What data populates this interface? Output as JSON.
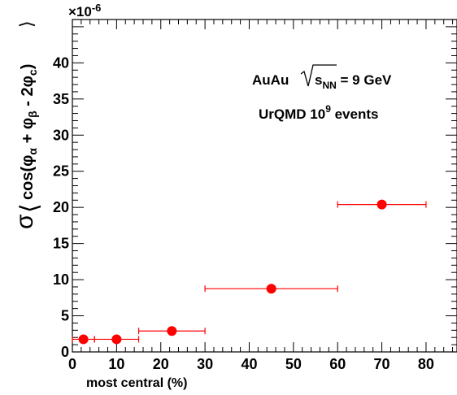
{
  "chart_data": {
    "type": "scatter",
    "title": "",
    "xlabel": "most central (%)",
    "ylabel": {
      "sigma": "σ",
      "core": "cos(φ",
      "sub_alpha": "α",
      "plus": " + φ",
      "sub_beta": "β",
      "minus": " - 2φ",
      "sub_c": "c",
      "close": ")"
    },
    "xlim": [
      0,
      87
    ],
    "ylim": [
      0,
      46
    ],
    "y_multiplier": "×10",
    "y_multiplier_exp": "-6",
    "x_ticks": [
      "0",
      "10",
      "20",
      "30",
      "40",
      "50",
      "60",
      "70",
      "80"
    ],
    "y_ticks": [
      "0",
      "5",
      "10",
      "15",
      "20",
      "25",
      "30",
      "35",
      "40"
    ],
    "grid": false,
    "marker_color": "#ff0000",
    "annotations": {
      "line1_prefix": "AuAu",
      "line1_s": "s",
      "line1_sub": "NN",
      "line1_suffix": " = 9 GeV",
      "line2_prefix": "UrQMD 10",
      "line2_sup": "9",
      "line2_suffix": " events"
    },
    "series": [
      {
        "points": [
          {
            "x": 2.5,
            "y": 1.75,
            "xerr_low": 2.5,
            "xerr_high": 2.5
          },
          {
            "x": 10,
            "y": 1.75,
            "xerr_low": 5,
            "xerr_high": 5
          },
          {
            "x": 22.5,
            "y": 2.9,
            "xerr_low": 7.5,
            "xerr_high": 7.5
          },
          {
            "x": 45,
            "y": 8.75,
            "xerr_low": 15,
            "xerr_high": 15
          },
          {
            "x": 70,
            "y": 20.4,
            "xerr_low": 10,
            "xerr_high": 10
          }
        ]
      }
    ]
  }
}
